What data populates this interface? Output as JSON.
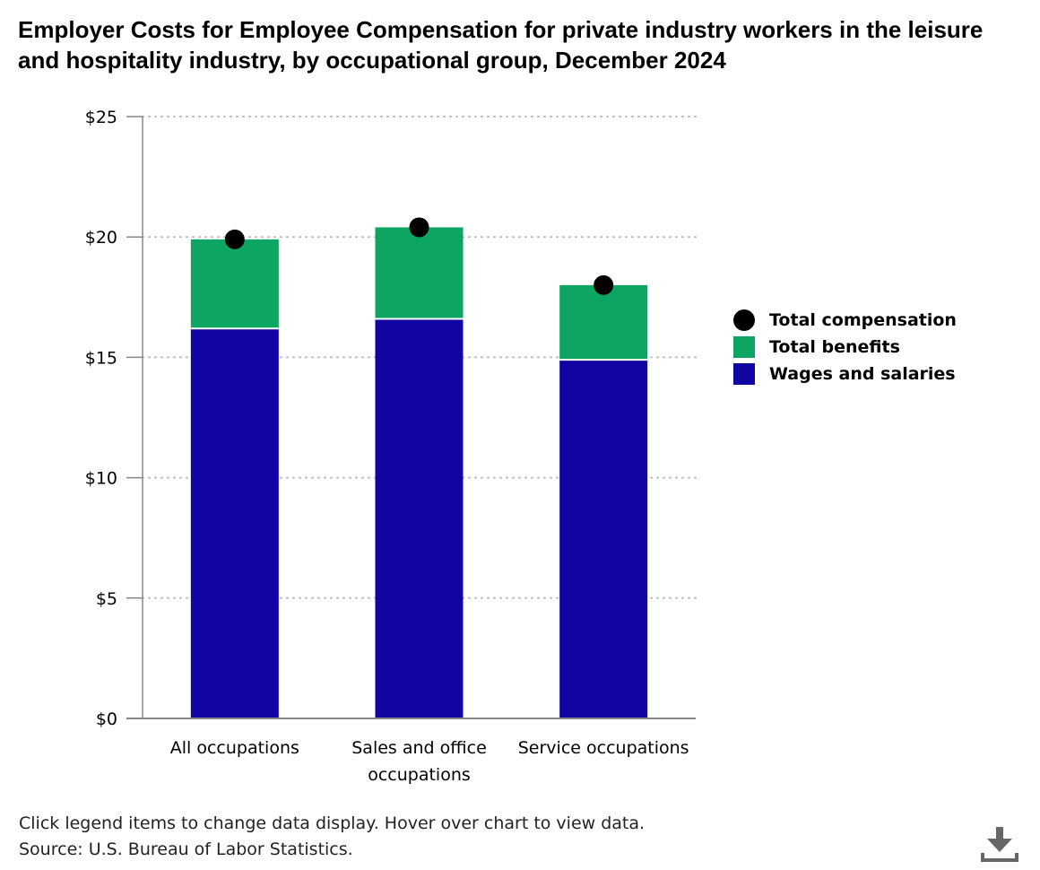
{
  "chart_data": {
    "type": "bar",
    "stacked": true,
    "title": "Employer Costs for Employee Compensation for private industry workers in the leisure and hospitality industry, by occupational group, December 2024",
    "categories": [
      [
        "All occupations"
      ],
      [
        "Sales and office",
        "occupations"
      ],
      [
        "Service occupations"
      ]
    ],
    "series": [
      {
        "name": "Wages and salaries",
        "type": "bar",
        "color": "#1005a3",
        "values": [
          16.2,
          16.6,
          14.9
        ]
      },
      {
        "name": "Total benefits",
        "type": "bar",
        "color": "#0ca662",
        "values": [
          3.7,
          3.8,
          3.1
        ]
      },
      {
        "name": "Total compensation",
        "type": "marker",
        "color": "#000000",
        "values": [
          19.9,
          20.4,
          18.0
        ]
      }
    ],
    "y_ticks": [
      "$0",
      "$5",
      "$10",
      "$15",
      "$20",
      "$25"
    ],
    "y_tick_values": [
      0,
      5,
      10,
      15,
      20,
      25
    ],
    "ylim": [
      0,
      25
    ],
    "xlabel": "",
    "ylabel": "",
    "grid": true,
    "legend_position": "right"
  },
  "legend": [
    {
      "label": "Total compensation",
      "shape": "circle",
      "color": "#000000"
    },
    {
      "label": "Total benefits",
      "shape": "square",
      "color": "#0ca662"
    },
    {
      "label": "Wages and salaries",
      "shape": "square",
      "color": "#1005a3"
    }
  ],
  "footer": {
    "instructions": "Click legend items to change data display. Hover over chart to view data.",
    "source": "Source: U.S. Bureau of Labor Statistics."
  },
  "icons": {
    "download": "download-icon"
  }
}
